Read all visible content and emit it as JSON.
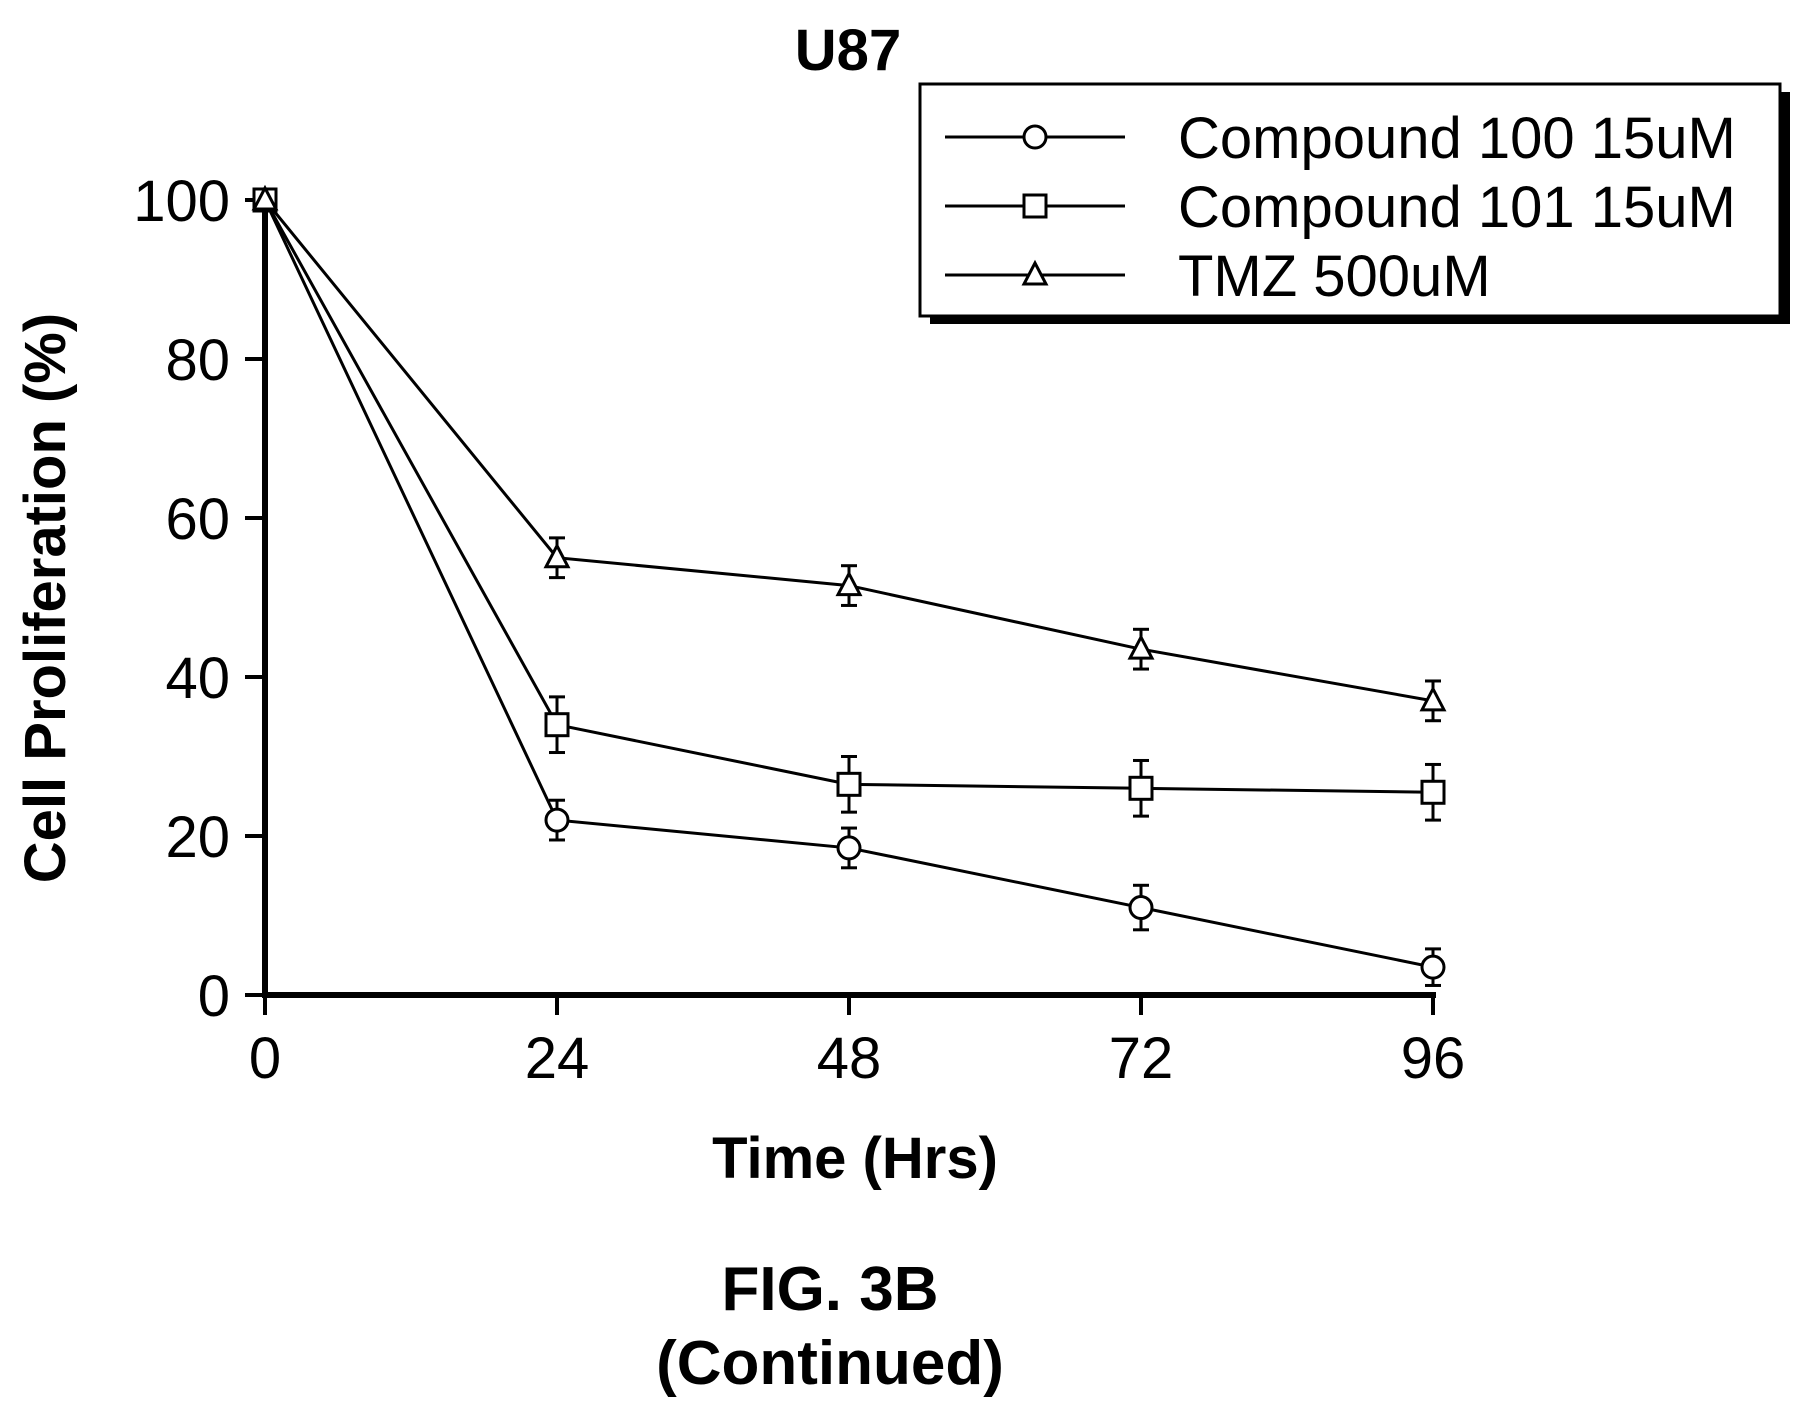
{
  "chart_data": {
    "type": "line",
    "title": "U87",
    "xlabel": "Time (Hrs)",
    "ylabel": "Cell Proliferation (%)",
    "x": [
      0,
      24,
      48,
      72,
      96
    ],
    "xticks": [
      "0",
      "24",
      "48",
      "72",
      "96"
    ],
    "yticks": [
      "0",
      "20",
      "40",
      "60",
      "80",
      "100"
    ],
    "xlim": [
      0,
      96
    ],
    "ylim": [
      0,
      100
    ],
    "grid": false,
    "legend_position": "top-right",
    "series": [
      {
        "name": "Compound 100 15uM",
        "marker": "circle",
        "values": [
          100,
          22,
          18.5,
          11,
          3.5
        ],
        "errors": [
          0,
          2.5,
          2.5,
          2.8,
          2.3
        ]
      },
      {
        "name": "Compound 101 15uM",
        "marker": "square",
        "values": [
          100,
          34,
          26.5,
          26,
          25.5
        ],
        "errors": [
          0,
          3.5,
          3.5,
          3.5,
          3.5
        ]
      },
      {
        "name": "TMZ 500uM",
        "marker": "triangle",
        "values": [
          100,
          55,
          51.5,
          43.5,
          37
        ],
        "errors": [
          0,
          2.5,
          2.5,
          2.5,
          2.5
        ]
      }
    ]
  },
  "caption": {
    "line1": "FIG. 3B",
    "line2": "(Continued)"
  }
}
